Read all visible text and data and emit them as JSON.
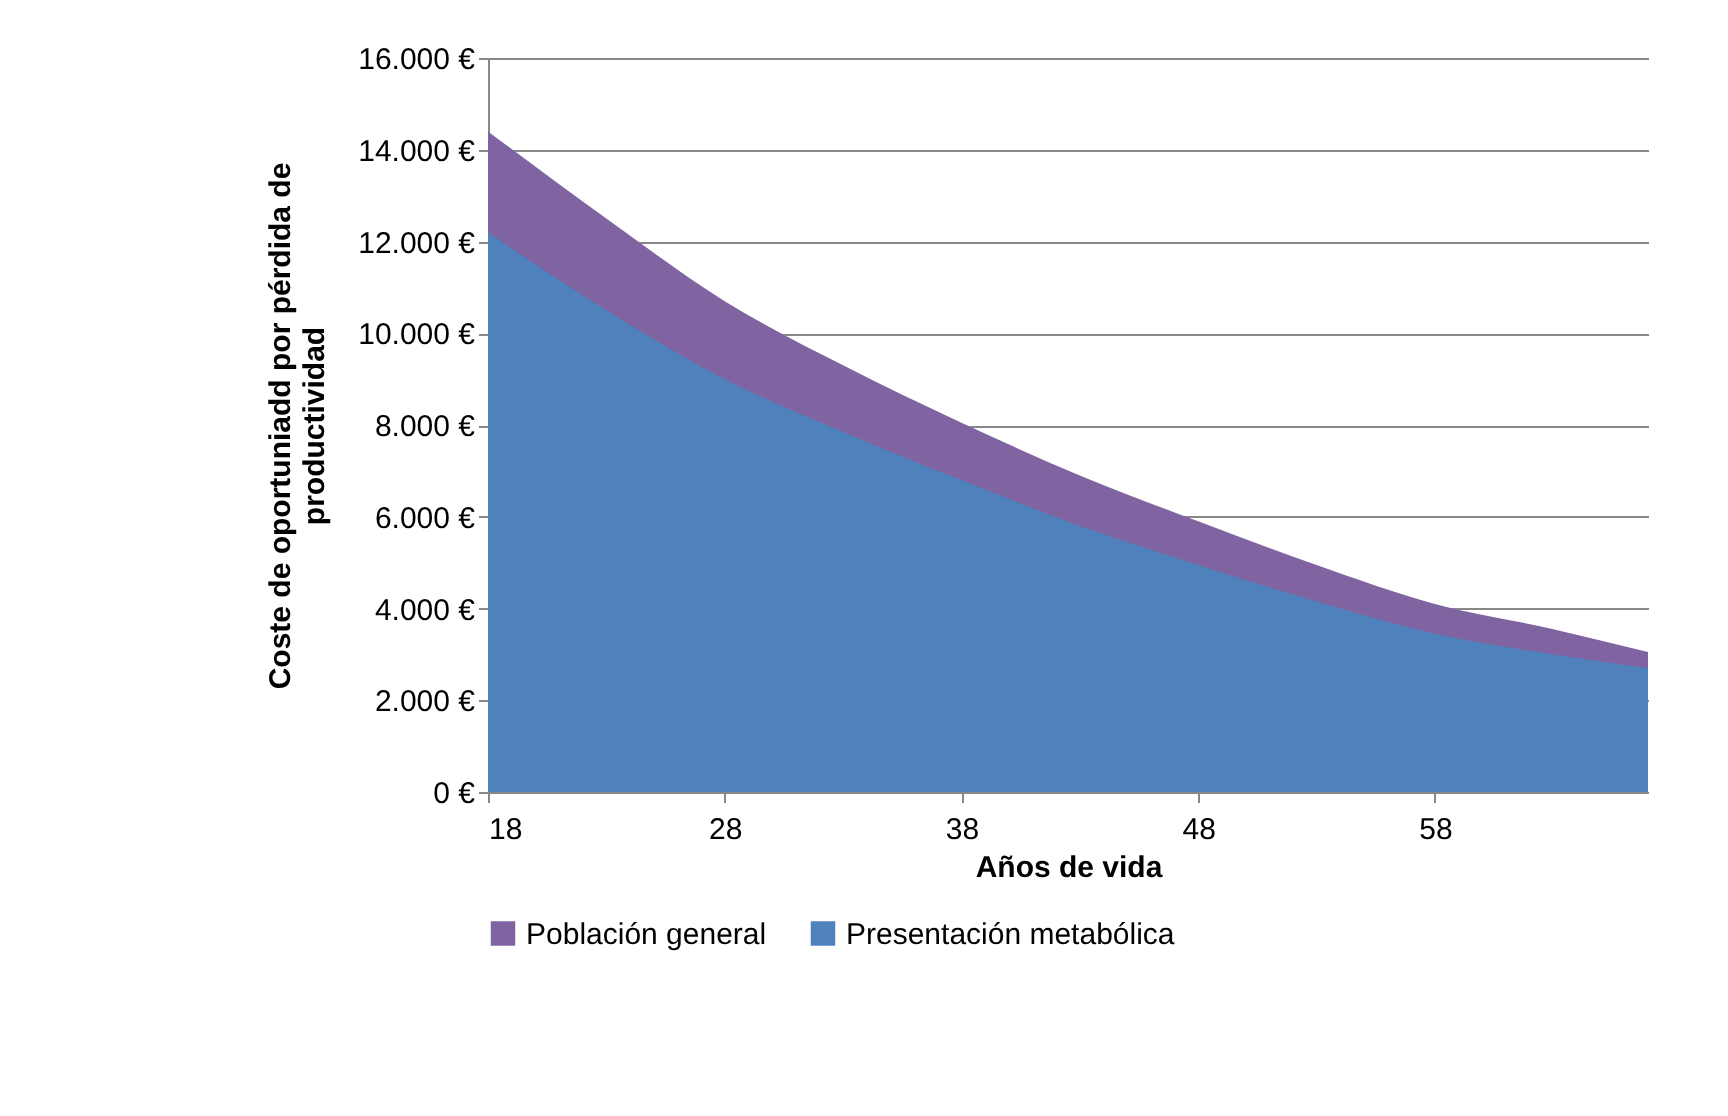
{
  "chart_data": {
    "type": "area",
    "xlabel": "Años de vida",
    "ylabel": "Coste de oportuniadd  por pérdida de productividad",
    "x": [
      18,
      23,
      28,
      33,
      38,
      43,
      48,
      53,
      58,
      63,
      67
    ],
    "series": [
      {
        "name": "Población general",
        "color": "#8064a2",
        "values": [
          14400,
          12500,
          10700,
          9300,
          8050,
          6900,
          5900,
          4950,
          4100,
          3550,
          3050
        ]
      },
      {
        "name": "Presentación metabólica",
        "color": "#4f81bd",
        "values": [
          12200,
          10500,
          9000,
          7850,
          6800,
          5800,
          4950,
          4150,
          3450,
          3000,
          2700
        ]
      }
    ],
    "xlim": [
      18,
      67
    ],
    "xticks": [
      18,
      28,
      38,
      48,
      58
    ],
    "ylim": [
      0,
      16000
    ],
    "yticks": [
      {
        "value": 0,
        "label": "0 €"
      },
      {
        "value": 2000,
        "label": "2.000 €"
      },
      {
        "value": 4000,
        "label": "4.000 €"
      },
      {
        "value": 6000,
        "label": "6.000 €"
      },
      {
        "value": 8000,
        "label": "8.000 €"
      },
      {
        "value": 10000,
        "label": "10.000 €"
      },
      {
        "value": 12000,
        "label": "12.000 €"
      },
      {
        "value": 14000,
        "label": "14.000 €"
      },
      {
        "value": 16000,
        "label": "16.000 €"
      }
    ],
    "grid": "y",
    "legend": "bottom"
  }
}
